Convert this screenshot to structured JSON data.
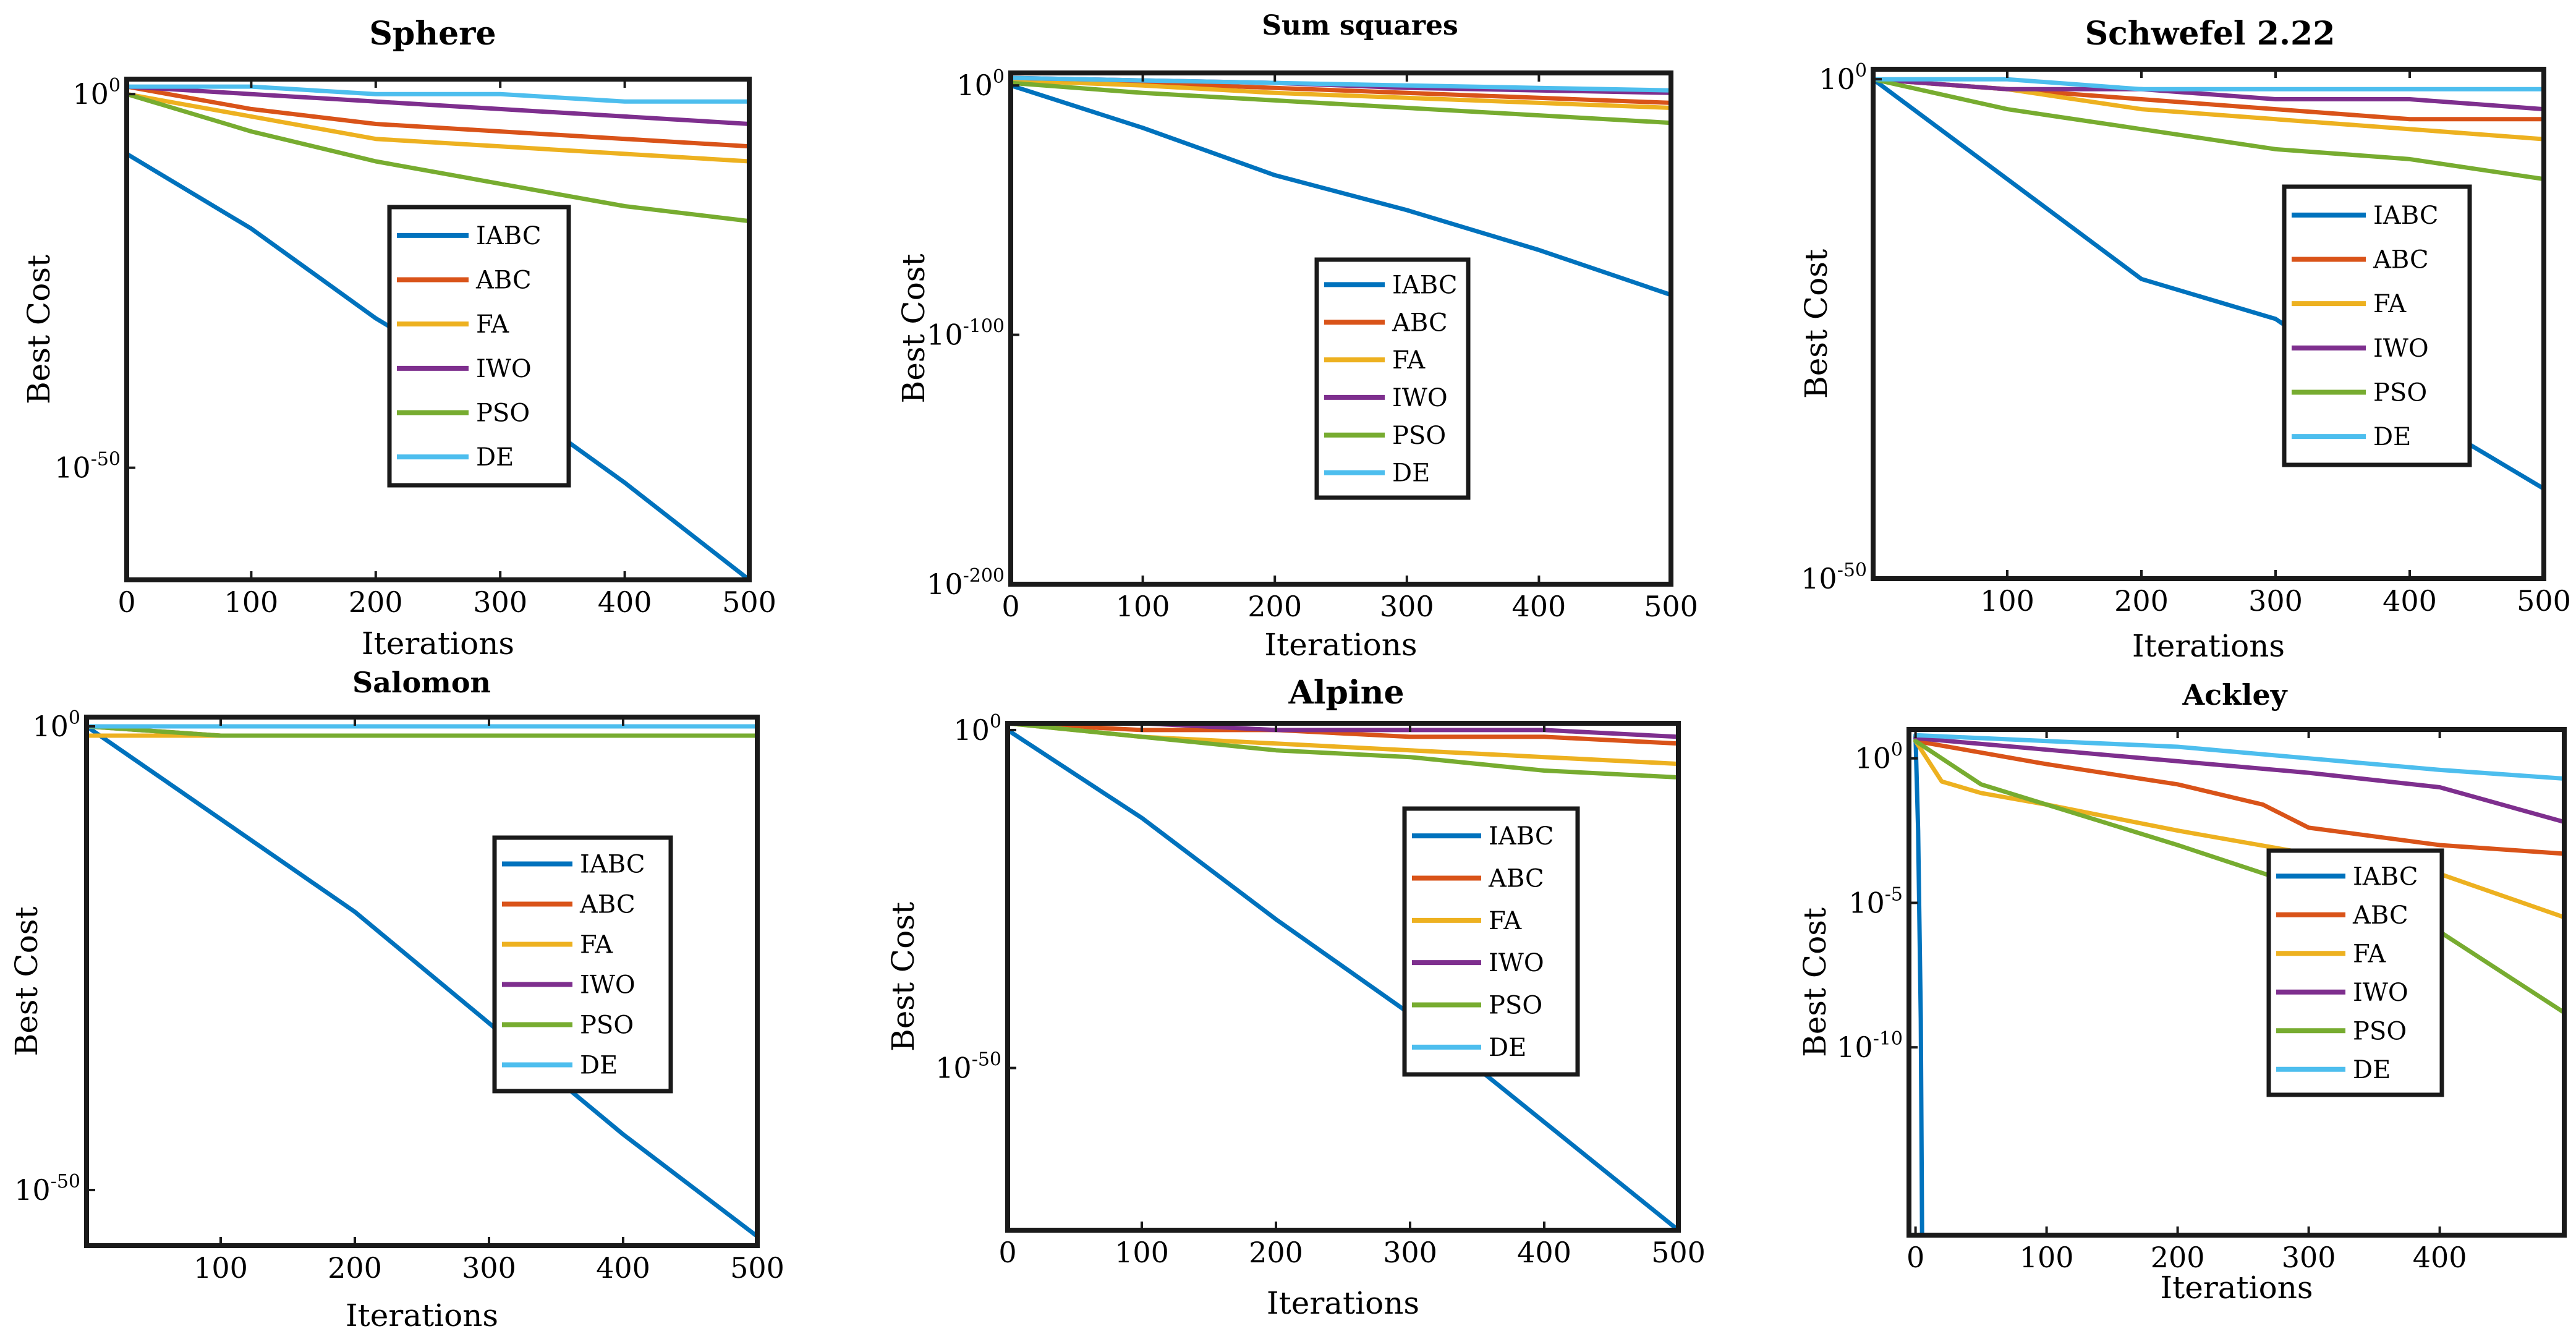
{
  "colors": {
    "IABC": "#0072BD",
    "ABC": "#D95319",
    "FA": "#EDB120",
    "IWO": "#7E2F8E",
    "PSO": "#77AC30",
    "DE": "#4DBEEE"
  },
  "chart_data": [
    {
      "type": "line",
      "title": "Sphere",
      "xlabel": "Iterations",
      "ylabel": "Best Cost",
      "yscale": "log",
      "xlim": [
        0,
        500
      ],
      "ylim_exp": [
        -65,
        2
      ],
      "xticks": [
        0,
        100,
        200,
        300,
        400,
        500
      ],
      "yticks": [
        {
          "label": "10",
          "exp": "0"
        },
        {
          "label": "10",
          "exp": "-50"
        }
      ],
      "legend": [
        "IABC",
        "ABC",
        "FA",
        "IWO",
        "PSO",
        "DE"
      ],
      "legend_position": "center",
      "series": [
        {
          "name": "IABC",
          "log10_x": [
            0,
            100,
            200,
            300,
            400,
            500
          ],
          "log10_y": [
            -8,
            -18,
            -30,
            -40,
            -52,
            -65
          ]
        },
        {
          "name": "ABC",
          "log10_x": [
            0,
            100,
            200,
            300,
            400,
            500
          ],
          "log10_y": [
            1,
            -2,
            -4,
            -5,
            -6,
            -7
          ]
        },
        {
          "name": "FA",
          "log10_x": [
            0,
            100,
            200,
            300,
            400,
            500
          ],
          "log10_y": [
            0,
            -3,
            -6,
            -7,
            -8,
            -9
          ]
        },
        {
          "name": "IWO",
          "log10_x": [
            0,
            100,
            200,
            300,
            400,
            500
          ],
          "log10_y": [
            1,
            0,
            -1,
            -2,
            -3,
            -4
          ]
        },
        {
          "name": "PSO",
          "log10_x": [
            0,
            100,
            200,
            300,
            400,
            500
          ],
          "log10_y": [
            0,
            -5,
            -9,
            -12,
            -15,
            -17
          ]
        },
        {
          "name": "DE",
          "log10_x": [
            0,
            100,
            200,
            300,
            400,
            500
          ],
          "log10_y": [
            1,
            1,
            0,
            0,
            -1,
            -1
          ]
        }
      ]
    },
    {
      "type": "line",
      "title": "Sum squares",
      "xlabel": "Iterations",
      "ylabel": "Best Cost",
      "yscale": "log",
      "xlim": [
        0,
        500
      ],
      "ylim_exp": [
        -200,
        5
      ],
      "xticks": [
        0,
        100,
        200,
        300,
        400,
        500
      ],
      "yticks": [
        {
          "label": "10",
          "exp": "0"
        },
        {
          "label": "10",
          "exp": "-100"
        },
        {
          "label": "10",
          "exp": "-200"
        }
      ],
      "legend": [
        "IABC",
        "ABC",
        "FA",
        "IWO",
        "PSO",
        "DE"
      ],
      "legend_position": "center",
      "series": [
        {
          "name": "IABC",
          "log10_x": [
            0,
            100,
            200,
            300,
            400,
            500
          ],
          "log10_y": [
            0,
            -17,
            -36,
            -50,
            -66,
            -84
          ]
        },
        {
          "name": "ABC",
          "log10_x": [
            0,
            100,
            200,
            300,
            400,
            500
          ],
          "log10_y": [
            3,
            1,
            -1,
            -3,
            -5,
            -7
          ]
        },
        {
          "name": "FA",
          "log10_x": [
            0,
            100,
            200,
            300,
            400,
            500
          ],
          "log10_y": [
            2,
            0,
            -3,
            -5,
            -7,
            -9
          ]
        },
        {
          "name": "IWO",
          "log10_x": [
            0,
            100,
            200,
            300,
            400,
            500
          ],
          "log10_y": [
            3,
            2,
            1,
            -1,
            -2,
            -3
          ]
        },
        {
          "name": "PSO",
          "log10_x": [
            0,
            100,
            200,
            300,
            400,
            500
          ],
          "log10_y": [
            1,
            -3,
            -6,
            -9,
            -12,
            -15
          ]
        },
        {
          "name": "DE",
          "log10_x": [
            0,
            100,
            200,
            300,
            400,
            500
          ],
          "log10_y": [
            3,
            2,
            1,
            0,
            -1,
            -2
          ]
        }
      ]
    },
    {
      "type": "line",
      "title": "Schwefel 2.22",
      "xlabel": "Iterations",
      "ylabel": "Best Cost",
      "yscale": "log",
      "xlim": [
        0,
        500
      ],
      "ylim_exp": [
        -50,
        1
      ],
      "xticks": [
        100,
        200,
        300,
        400,
        500
      ],
      "yticks": [
        {
          "label": "10",
          "exp": "0"
        },
        {
          "label": "10",
          "exp": "-50"
        }
      ],
      "legend": [
        "IABC",
        "ABC",
        "FA",
        "IWO",
        "PSO",
        "DE"
      ],
      "legend_position": "center-right",
      "series": [
        {
          "name": "IABC",
          "log10_x": [
            0,
            100,
            200,
            300,
            400,
            500
          ],
          "log10_y": [
            0,
            -10,
            -20,
            -24,
            -33,
            -41
          ]
        },
        {
          "name": "ABC",
          "log10_x": [
            0,
            100,
            200,
            300,
            400,
            500
          ],
          "log10_y": [
            0,
            -1,
            -2,
            -3,
            -4,
            -4
          ]
        },
        {
          "name": "FA",
          "log10_x": [
            0,
            100,
            200,
            300,
            400,
            500
          ],
          "log10_y": [
            0,
            -1,
            -3,
            -4,
            -5,
            -6
          ]
        },
        {
          "name": "IWO",
          "log10_x": [
            0,
            100,
            200,
            300,
            400,
            500
          ],
          "log10_y": [
            0,
            -1,
            -1,
            -2,
            -2,
            -3
          ]
        },
        {
          "name": "PSO",
          "log10_x": [
            0,
            100,
            200,
            300,
            400,
            500
          ],
          "log10_y": [
            0,
            -3,
            -5,
            -7,
            -8,
            -10
          ]
        },
        {
          "name": "DE",
          "log10_x": [
            0,
            100,
            200,
            300,
            400,
            500
          ],
          "log10_y": [
            0,
            0,
            -1,
            -1,
            -1,
            -1
          ]
        }
      ]
    },
    {
      "type": "line",
      "title": "Salomon",
      "xlabel": "Iterations",
      "ylabel": "Best Cost",
      "yscale": "log",
      "xlim": [
        0,
        500
      ],
      "ylim_exp": [
        -56,
        1
      ],
      "xticks": [
        100,
        200,
        300,
        400,
        500
      ],
      "yticks": [
        {
          "label": "10",
          "exp": "0"
        },
        {
          "label": "10",
          "exp": "-50"
        }
      ],
      "legend": [
        "IABC",
        "ABC",
        "FA",
        "IWO",
        "PSO",
        "DE"
      ],
      "legend_position": "center-right",
      "series": [
        {
          "name": "IABC",
          "log10_x": [
            0,
            100,
            200,
            300,
            400,
            500
          ],
          "log10_y": [
            0,
            -10,
            -20,
            -32,
            -44,
            -55
          ]
        },
        {
          "name": "ABC",
          "log10_x": [
            0,
            100,
            200,
            300,
            400,
            500
          ],
          "log10_y": [
            0,
            -1,
            -1,
            -1,
            -1,
            -1
          ]
        },
        {
          "name": "FA",
          "log10_x": [
            0,
            100,
            200,
            300,
            400,
            500
          ],
          "log10_y": [
            -1,
            -1,
            -1,
            -1,
            -1,
            -1
          ]
        },
        {
          "name": "IWO",
          "log10_x": [
            0,
            100,
            200,
            300,
            400,
            500
          ],
          "log10_y": [
            1,
            1,
            1,
            1,
            1,
            1
          ]
        },
        {
          "name": "PSO",
          "log10_x": [
            0,
            100,
            200,
            300,
            400,
            500
          ],
          "log10_y": [
            0,
            -1,
            -1,
            -1,
            -1,
            -1
          ]
        },
        {
          "name": "DE",
          "log10_x": [
            0,
            100,
            200,
            300,
            400,
            500
          ],
          "log10_y": [
            0,
            0,
            0,
            0,
            0,
            0
          ]
        }
      ]
    },
    {
      "type": "line",
      "title": "Alpine",
      "xlabel": "Iterations",
      "ylabel": "Best Cost",
      "yscale": "log",
      "xlim": [
        0,
        500
      ],
      "ylim_exp": [
        -74,
        1
      ],
      "xticks": [
        0,
        100,
        200,
        300,
        400,
        500
      ],
      "yticks": [
        {
          "label": "10",
          "exp": "0"
        },
        {
          "label": "10",
          "exp": "-50"
        }
      ],
      "legend": [
        "IABC",
        "ABC",
        "FA",
        "IWO",
        "PSO",
        "DE"
      ],
      "legend_position": "center-right",
      "series": [
        {
          "name": "IABC",
          "log10_x": [
            0,
            100,
            200,
            300,
            400,
            500
          ],
          "log10_y": [
            0,
            -13,
            -28,
            -42,
            -58,
            -74
          ]
        },
        {
          "name": "ABC",
          "log10_x": [
            0,
            100,
            200,
            300,
            400,
            500
          ],
          "log10_y": [
            1,
            0,
            0,
            -1,
            -1,
            -2
          ]
        },
        {
          "name": "FA",
          "log10_x": [
            0,
            100,
            200,
            300,
            400,
            500
          ],
          "log10_y": [
            1,
            -1,
            -2,
            -3,
            -4,
            -5
          ]
        },
        {
          "name": "IWO",
          "log10_x": [
            0,
            100,
            200,
            300,
            400,
            500
          ],
          "log10_y": [
            1,
            1,
            0,
            0,
            0,
            -1
          ]
        },
        {
          "name": "PSO",
          "log10_x": [
            0,
            100,
            200,
            300,
            400,
            500
          ],
          "log10_y": [
            1,
            -1,
            -3,
            -4,
            -6,
            -7
          ]
        },
        {
          "name": "DE",
          "log10_x": [
            0,
            100,
            200,
            300,
            400,
            500
          ],
          "log10_y": [
            1,
            1,
            1,
            1,
            1,
            1
          ]
        }
      ]
    },
    {
      "type": "line",
      "title": "Ackley",
      "xlabel": "Iterations",
      "ylabel": "Best Cost",
      "yscale": "log",
      "xlim": [
        -5,
        495
      ],
      "ylim_exp": [
        -16.5,
        1
      ],
      "xticks": [
        0,
        100,
        200,
        300,
        400
      ],
      "yticks": [
        {
          "label": "10",
          "exp": "0"
        },
        {
          "label": "10",
          "exp": "-5"
        },
        {
          "label": "10",
          "exp": "-10"
        }
      ],
      "legend": [
        "IABC",
        "ABC",
        "FA",
        "IWO",
        "PSO",
        "DE"
      ],
      "legend_position": "center-right",
      "series": [
        {
          "name": "IABC",
          "log10_x": [
            0,
            2,
            4,
            5,
            5
          ],
          "log10_y": [
            0.8,
            -2.5,
            -9,
            -16.5,
            -16.5
          ]
        },
        {
          "name": "ABC",
          "log10_x": [
            0,
            100,
            200,
            265,
            300,
            400,
            495
          ],
          "log10_y": [
            0.6,
            -0.2,
            -0.9,
            -1.6,
            -2.4,
            -3.0,
            -3.3
          ]
        },
        {
          "name": "FA",
          "log10_x": [
            0,
            20,
            50,
            100,
            200,
            300,
            400,
            495
          ],
          "log10_y": [
            0.6,
            -0.8,
            -1.2,
            -1.6,
            -2.5,
            -3.3,
            -4.0,
            -5.5
          ]
        },
        {
          "name": "IWO",
          "log10_x": [
            0,
            100,
            200,
            300,
            400,
            495
          ],
          "log10_y": [
            0.7,
            0.3,
            -0.1,
            -0.5,
            -1.0,
            -2.2
          ]
        },
        {
          "name": "PSO",
          "log10_x": [
            0,
            50,
            100,
            200,
            300,
            400,
            495
          ],
          "log10_y": [
            0.6,
            -0.9,
            -1.6,
            -3.0,
            -4.5,
            -6.0,
            -8.8
          ]
        },
        {
          "name": "DE",
          "log10_x": [
            0,
            100,
            200,
            300,
            400,
            495
          ],
          "log10_y": [
            0.8,
            0.6,
            0.4,
            0.0,
            -0.4,
            -0.7
          ]
        }
      ]
    }
  ]
}
